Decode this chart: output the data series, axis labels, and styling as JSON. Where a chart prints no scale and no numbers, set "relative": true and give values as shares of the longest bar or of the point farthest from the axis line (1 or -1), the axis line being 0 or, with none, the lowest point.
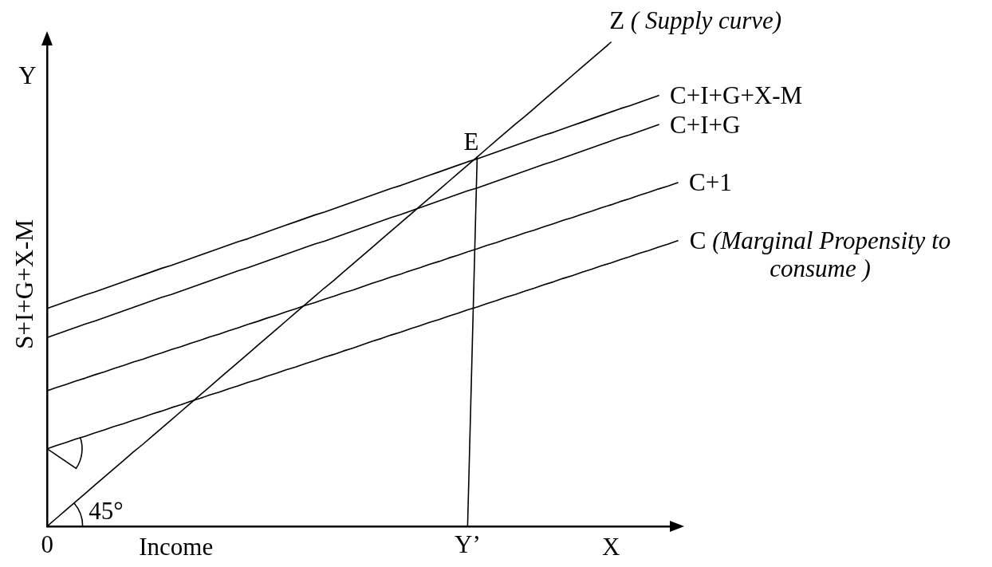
{
  "chart_data": {
    "type": "line",
    "relative": true,
    "xlabel": "Income",
    "ylabel": "S+I+G+X-M",
    "annotations": [
      "Y",
      "X",
      "45°",
      {
        "text": "E",
        "y": 0.763
      }
    ],
    "grid": false,
    "marker": "none",
    "line_style": "solid",
    "categories": [
      "0",
      null,
      null,
      null,
      null,
      null,
      null,
      null,
      null,
      null,
      null,
      null,
      null,
      null,
      null,
      null,
      null,
      null,
      null,
      null,
      null,
      null,
      null,
      null,
      null,
      null,
      null,
      null,
      null,
      null,
      null,
      null,
      null,
      null,
      null,
      null,
      null,
      null,
      null,
      null,
      null,
      null,
      null,
      null,
      "Y’",
      null,
      null,
      null,
      null,
      null,
      null,
      null,
      null,
      null,
      null,
      null,
      null,
      null,
      null,
      null,
      null,
      null,
      null,
      null,
      null,
      null,
      null
    ],
    "series": [
      {
        "name": "Z ( Supply curve)",
        "color": "#000000",
        "values": [
          0,
          0.017,
          0.034,
          0.051,
          0.068,
          0.085,
          0.102,
          0.119,
          0.136,
          0.153,
          0.169,
          0.186,
          0.203,
          0.22,
          0.237,
          0.254,
          0.271,
          0.288,
          0.305,
          0.322,
          0.339,
          0.356,
          0.373,
          0.39,
          0.407,
          0.424,
          0.441,
          0.458,
          0.475,
          0.492,
          0.508,
          0.525,
          0.542,
          0.559,
          0.576,
          0.593,
          0.61,
          0.627,
          0.644,
          0.661,
          0.678,
          0.695,
          0.712,
          0.729,
          0.746,
          0.763,
          0.78,
          0.797,
          0.814,
          0.831,
          0.847,
          0.864,
          0.881,
          0.898,
          0.915,
          0.932,
          0.949,
          0.966,
          0.983,
          1,
          null,
          null,
          null,
          null,
          null,
          null,
          null
        ]
      },
      {
        "name": "C+I+G+X-M",
        "color": "#000000",
        "values": [
          0.45,
          0.457,
          0.464,
          0.471,
          0.478,
          0.484,
          0.491,
          0.498,
          0.505,
          0.512,
          0.519,
          0.526,
          0.533,
          0.539,
          0.546,
          0.553,
          0.56,
          0.567,
          0.574,
          0.581,
          0.588,
          0.594,
          0.601,
          0.608,
          0.615,
          0.622,
          0.629,
          0.636,
          0.643,
          0.649,
          0.656,
          0.663,
          0.67,
          0.677,
          0.684,
          0.691,
          0.698,
          0.704,
          0.711,
          0.718,
          0.725,
          0.732,
          0.739,
          0.746,
          0.753,
          0.759,
          0.766,
          0.773,
          0.78,
          0.787,
          0.794,
          0.801,
          0.808,
          0.814,
          0.821,
          0.828,
          0.835,
          0.842,
          0.849,
          0.856,
          0.863,
          0.869,
          0.876,
          0.883,
          0.89,
          null,
          null
        ]
      },
      {
        "name": "C+I+G",
        "color": "#000000",
        "values": [
          0.39,
          0.397,
          0.404,
          0.411,
          0.418,
          0.424,
          0.431,
          0.438,
          0.445,
          0.452,
          0.459,
          0.466,
          0.473,
          0.479,
          0.486,
          0.493,
          0.5,
          0.507,
          0.514,
          0.521,
          0.528,
          0.534,
          0.541,
          0.548,
          0.555,
          0.562,
          0.569,
          0.576,
          0.583,
          0.589,
          0.596,
          0.603,
          0.61,
          0.617,
          0.624,
          0.631,
          0.638,
          0.644,
          0.651,
          0.658,
          0.665,
          0.672,
          0.679,
          0.686,
          0.693,
          0.699,
          0.706,
          0.713,
          0.72,
          0.727,
          0.734,
          0.741,
          0.748,
          0.754,
          0.761,
          0.768,
          0.775,
          0.782,
          0.789,
          0.796,
          0.803,
          0.809,
          0.816,
          0.823,
          0.83,
          null,
          null
        ]
      },
      {
        "name": "C+1",
        "color": "#000000",
        "values": [
          0.28,
          0.287,
          0.293,
          0.3,
          0.306,
          0.313,
          0.319,
          0.326,
          0.332,
          0.339,
          0.345,
          0.352,
          0.358,
          0.365,
          0.371,
          0.378,
          0.384,
          0.391,
          0.397,
          0.404,
          0.41,
          0.417,
          0.423,
          0.43,
          0.436,
          0.443,
          0.449,
          0.456,
          0.462,
          0.469,
          0.475,
          0.482,
          0.488,
          0.495,
          0.502,
          0.508,
          0.515,
          0.521,
          0.528,
          0.534,
          0.541,
          0.547,
          0.554,
          0.56,
          0.567,
          0.573,
          0.58,
          0.586,
          0.593,
          0.599,
          0.606,
          0.612,
          0.619,
          0.625,
          0.632,
          0.638,
          0.645,
          0.651,
          0.658,
          0.664,
          0.671,
          0.677,
          0.684,
          0.69,
          0.697,
          0.703,
          0.71
        ]
      },
      {
        "name": "C (Marginal Propensity to consume )",
        "color": "#000000",
        "values": [
          0.16,
          0.167,
          0.173,
          0.18,
          0.186,
          0.193,
          0.199,
          0.206,
          0.212,
          0.219,
          0.225,
          0.232,
          0.238,
          0.245,
          0.251,
          0.258,
          0.264,
          0.271,
          0.277,
          0.284,
          0.29,
          0.297,
          0.303,
          0.31,
          0.316,
          0.323,
          0.329,
          0.336,
          0.342,
          0.349,
          0.355,
          0.362,
          0.368,
          0.375,
          0.382,
          0.388,
          0.395,
          0.401,
          0.408,
          0.414,
          0.421,
          0.427,
          0.434,
          0.44,
          0.447,
          0.453,
          0.46,
          0.466,
          0.473,
          0.479,
          0.486,
          0.492,
          0.499,
          0.505,
          0.512,
          0.518,
          0.525,
          0.531,
          0.538,
          0.544,
          0.551,
          0.557,
          0.564,
          0.57,
          0.577,
          0.583,
          0.59
        ]
      },
      {
        "color": "#000000",
        "values": [
          null,
          null,
          null,
          null,
          null,
          null,
          null,
          null,
          null,
          null,
          null,
          null,
          null,
          null,
          null,
          null,
          null,
          null,
          null,
          null,
          null,
          null,
          null,
          null,
          null,
          null,
          null,
          null,
          null,
          null,
          null,
          null,
          null,
          null,
          null,
          null,
          null,
          null,
          null,
          null,
          null,
          null,
          null,
          null,
          0,
          0.763,
          null,
          null,
          null,
          null,
          null,
          null,
          null,
          null,
          null,
          null,
          null,
          null,
          null,
          null,
          null,
          null,
          null,
          null,
          null,
          null,
          null
        ]
      }
    ]
  }
}
